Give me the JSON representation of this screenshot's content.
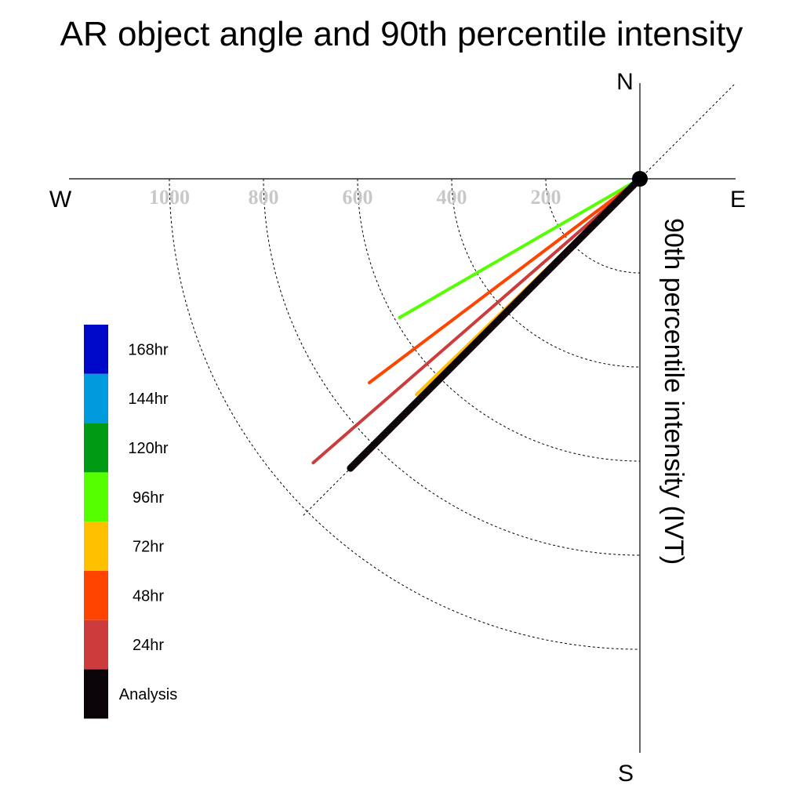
{
  "chart_data": {
    "type": "polar-vector",
    "title": "AR object angle and 90th percentile intensity",
    "radial_label": "90th percentile intensity (IVT)",
    "compass": {
      "north": "N",
      "south": "S",
      "east": "E",
      "west": "W"
    },
    "rings": [
      200,
      400,
      600,
      800,
      1000
    ],
    "reference_angle_deg": 45,
    "series": [
      {
        "name": "96hr",
        "angle_deg": 30,
        "magnitude": 590,
        "color": "#55ff00"
      },
      {
        "name": "48hr",
        "angle_deg": 37,
        "magnitude": 720,
        "color": "#ff4400"
      },
      {
        "name": "24hr",
        "angle_deg": 41,
        "magnitude": 920,
        "color": "#cc3c3c"
      },
      {
        "name": "72hr",
        "angle_deg": 44,
        "magnitude": 660,
        "color": "#ffc000"
      },
      {
        "name": "Analysis",
        "angle_deg": 45,
        "magnitude": 870,
        "color": "#0a0308"
      }
    ],
    "legend": [
      {
        "label": "168hr",
        "color": "#0008c8"
      },
      {
        "label": "144hr",
        "color": "#009bdc"
      },
      {
        "label": "120hr",
        "color": "#009a14"
      },
      {
        "label": "96hr",
        "color": "#55ff00"
      },
      {
        "label": "72hr",
        "color": "#ffc000"
      },
      {
        "label": "48hr",
        "color": "#ff4400"
      },
      {
        "label": "24hr",
        "color": "#cc3c3c"
      },
      {
        "label": "Analysis",
        "color": "#0a0308"
      }
    ]
  }
}
